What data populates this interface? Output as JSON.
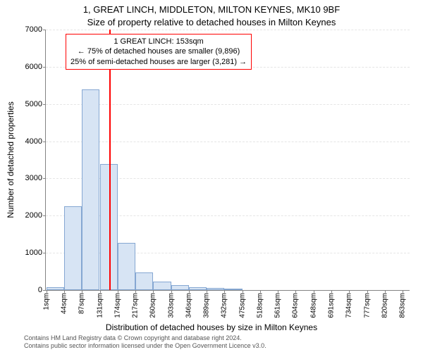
{
  "title_main": "1, GREAT LINCH, MIDDLETON, MILTON KEYNES, MK10 9BF",
  "title_sub": "Size of property relative to detached houses in Milton Keynes",
  "ylabel": "Number of detached properties",
  "xlabel": "Distribution of detached houses by size in Milton Keynes",
  "annotation": {
    "line1": "1 GREAT LINCH: 153sqm",
    "line2": "← 75% of detached houses are smaller (9,896)",
    "line3": "25% of semi-detached houses are larger (3,281) →"
  },
  "footer": {
    "line1": "Contains HM Land Registry data © Crown copyright and database right 2024.",
    "line2": "Contains public sector information licensed under the Open Government Licence v3.0."
  },
  "chart": {
    "type": "histogram",
    "bar_fill": "#d7e4f4",
    "bar_border": "#85a7d2",
    "vline_color": "#ff0000",
    "anno_border": "#ff0000",
    "background": "#ffffff",
    "grid_color": "#e5e5e5",
    "axis_color": "#838383",
    "x_min": 0,
    "x_max": 880,
    "ylim": [
      0,
      7000
    ],
    "yticks": [
      0,
      1000,
      2000,
      3000,
      4000,
      5000,
      6000,
      7000
    ],
    "xticks": [
      1,
      44,
      87,
      131,
      174,
      217,
      260,
      303,
      346,
      389,
      432,
      475,
      518,
      561,
      604,
      648,
      691,
      734,
      777,
      820,
      863
    ],
    "xtick_suffix": "sqm",
    "vline_x": 153,
    "bin_width": 43,
    "bins": [
      {
        "x": 1,
        "count": 80
      },
      {
        "x": 44,
        "count": 2250
      },
      {
        "x": 87,
        "count": 5400
      },
      {
        "x": 131,
        "count": 3380
      },
      {
        "x": 174,
        "count": 1260
      },
      {
        "x": 217,
        "count": 480
      },
      {
        "x": 260,
        "count": 220
      },
      {
        "x": 303,
        "count": 140
      },
      {
        "x": 346,
        "count": 80
      },
      {
        "x": 389,
        "count": 60
      },
      {
        "x": 432,
        "count": 20
      },
      {
        "x": 475,
        "count": 0
      },
      {
        "x": 518,
        "count": 0
      },
      {
        "x": 561,
        "count": 0
      },
      {
        "x": 604,
        "count": 0
      },
      {
        "x": 648,
        "count": 0
      },
      {
        "x": 691,
        "count": 0
      },
      {
        "x": 734,
        "count": 0
      },
      {
        "x": 777,
        "count": 0
      },
      {
        "x": 820,
        "count": 0
      }
    ]
  }
}
